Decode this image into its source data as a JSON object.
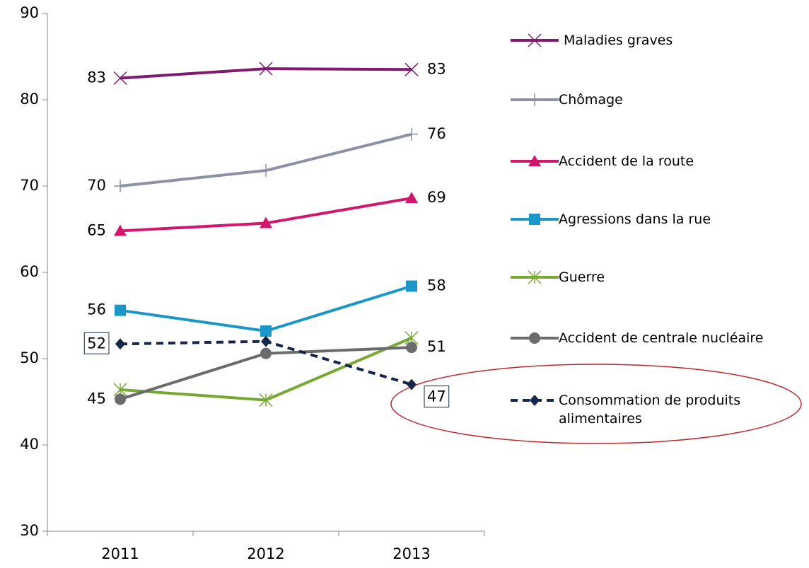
{
  "chart_data": {
    "type": "line",
    "categories": [
      "2011",
      "2012",
      "2013"
    ],
    "ylim": [
      30,
      90
    ],
    "yticks": [
      30,
      40,
      50,
      60,
      70,
      80,
      90
    ],
    "series": [
      {
        "name": "Maladies graves",
        "color": "#7f1a6e",
        "marker": "x",
        "values": [
          82.5,
          83.6,
          83.5
        ],
        "value_labels": [
          "83",
          null,
          "83"
        ]
      },
      {
        "name": "Chômage",
        "color": "#8c91a8",
        "marker": "plus",
        "values": [
          70.0,
          71.8,
          76.0
        ],
        "value_labels": [
          "70",
          null,
          "76"
        ]
      },
      {
        "name": "Accident de la route",
        "color": "#d4156e",
        "marker": "triangle",
        "values": [
          64.8,
          65.7,
          68.6
        ],
        "value_labels": [
          "65",
          null,
          "69"
        ]
      },
      {
        "name": "Agressions dans la rue",
        "color": "#1a96c8",
        "marker": "square",
        "values": [
          55.6,
          53.2,
          58.4
        ],
        "value_labels": [
          "56",
          null,
          "58"
        ]
      },
      {
        "name": "Guerre",
        "color": "#76a832",
        "marker": "asterisk",
        "values": [
          46.4,
          45.2,
          52.4
        ]
      },
      {
        "name": "Accident de centrale nucléaire",
        "color": "#6b6b6b",
        "marker": "circle",
        "values": [
          45.3,
          50.6,
          51.3
        ],
        "value_labels": [
          "45",
          null,
          "51"
        ]
      },
      {
        "name": "Consommation de produits alimentaires",
        "color": "#14264a",
        "marker": "diamond",
        "dashed": true,
        "values": [
          51.7,
          52.0,
          47.0
        ],
        "value_labels": [
          "52",
          null,
          "47"
        ]
      }
    ]
  }
}
